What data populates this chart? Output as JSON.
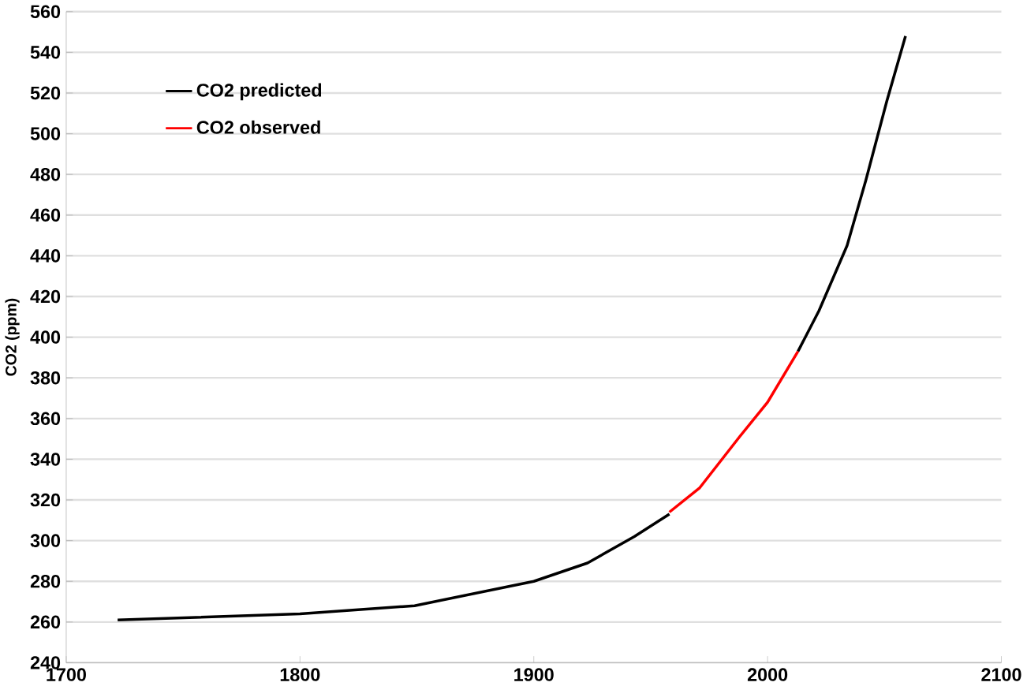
{
  "chart_data": {
    "type": "line",
    "ylabel": "CO2 (ppm)",
    "xlim": [
      1700,
      2100
    ],
    "xticks": [
      1700,
      1800,
      1900,
      2000,
      2100
    ],
    "ylim": [
      240,
      560
    ],
    "yticks": [
      240,
      260,
      280,
      300,
      320,
      340,
      360,
      380,
      400,
      420,
      440,
      460,
      480,
      500,
      520,
      540,
      560
    ],
    "grid": "y",
    "legend": "top left",
    "marker": "none",
    "line_style": "solid",
    "series": [
      {
        "name": "CO2 predicted",
        "color": "#000000",
        "x": [
          1722,
          1800,
          1849,
          1900,
          1923,
          1943,
          1958,
          1971,
          1988,
          2000,
          2013,
          2022,
          2034,
          2042,
          2051,
          2059
        ],
        "values": [
          261,
          264,
          268,
          280,
          289,
          302,
          313,
          null,
          null,
          null,
          393,
          413,
          445,
          477,
          516,
          548
        ]
      },
      {
        "name": "CO2 observed",
        "color": "#ff0000",
        "x": [
          1958,
          1971,
          1988,
          2000,
          2013
        ],
        "values": [
          314,
          326,
          351,
          368,
          393
        ]
      }
    ]
  }
}
